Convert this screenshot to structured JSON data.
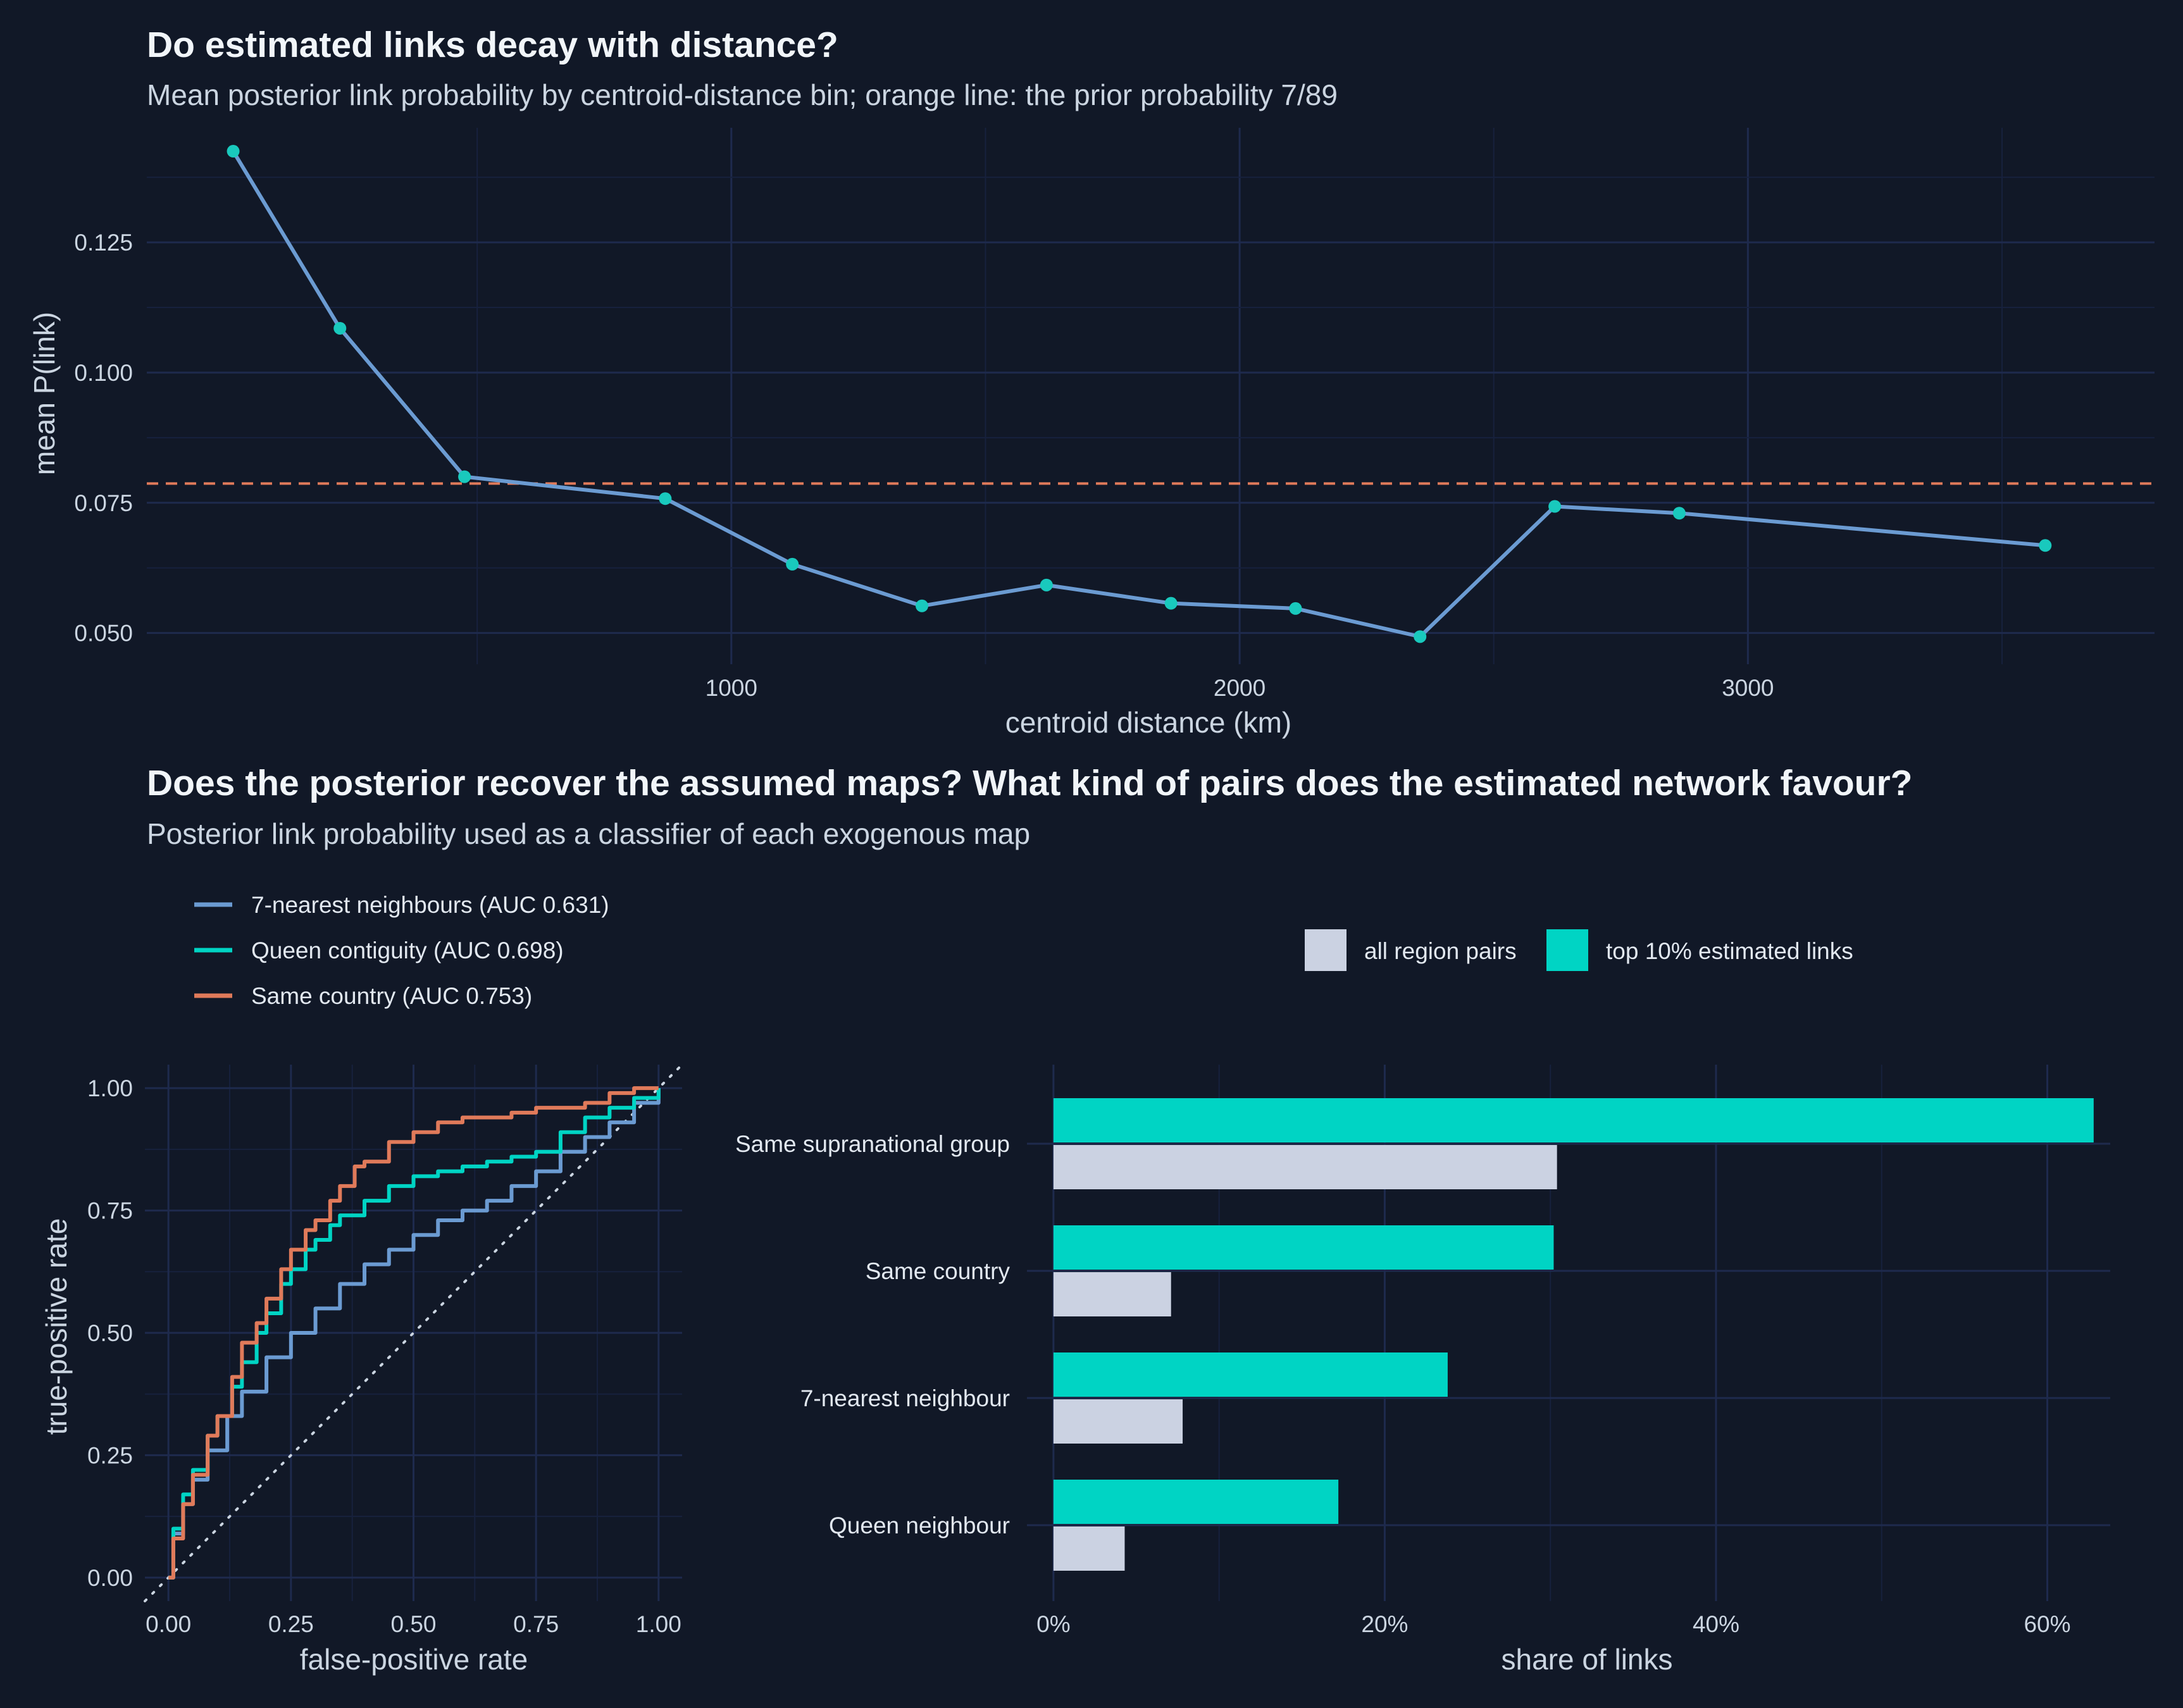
{
  "colors": {
    "background": "#111827",
    "grid_major": "#1e2a4d",
    "grid_minor": "#17213d",
    "line_blue": "#6b9bd2",
    "point_teal": "#19c9bd",
    "teal": "#00d4c4",
    "orange": "#e07a5a",
    "light_bar": "#cbd2e2",
    "diagonal": "#cbd5e1"
  },
  "top": {
    "title": "Do estimated links decay with distance?",
    "subtitle": "Mean posterior link probability by centroid-distance bin; orange line: the prior probability 7/89"
  },
  "bottom": {
    "title": "Does the posterior recover the assumed maps?  What kind of pairs does the estimated network favour?",
    "subtitle": "Posterior link probability used as a classifier of each exogenous map"
  },
  "chart_data": [
    {
      "type": "line",
      "xlabel": "centroid distance (km)",
      "ylabel": "mean P(link)",
      "xlim": [
        -150,
        3800
      ],
      "ylim": [
        0.044,
        0.147
      ],
      "x_ticks": [
        1000,
        2000,
        3000
      ],
      "y_ticks": [
        0.05,
        0.075,
        0.1,
        0.125
      ],
      "y_tick_labels": [
        "0.050",
        "0.075",
        "0.100",
        "0.125"
      ],
      "x_tick_labels": [
        "1000",
        "2000",
        "3000"
      ],
      "x": [
        20,
        230,
        475,
        870,
        1120,
        1375,
        1620,
        1865,
        2110,
        2355,
        2620,
        2865,
        3585
      ],
      "y": [
        0.1425,
        0.1085,
        0.08,
        0.0758,
        0.0632,
        0.0552,
        0.0592,
        0.0557,
        0.0547,
        0.0493,
        0.0743,
        0.073,
        0.0668
      ],
      "reference_line": {
        "y": 0.0787,
        "label": "7/89",
        "style": "dashed"
      },
      "grid": true
    },
    {
      "type": "line",
      "xlabel": "false-positive rate",
      "ylabel": "true-positive rate",
      "xlim": [
        -0.048,
        1.048
      ],
      "ylim": [
        -0.048,
        1.048
      ],
      "ticks": [
        0,
        0.25,
        0.5,
        0.75,
        1.0
      ],
      "tick_labels": [
        "0.00",
        "0.25",
        "0.50",
        "0.75",
        "1.00"
      ],
      "diagonal": true,
      "legend_position": "top-left",
      "series": [
        {
          "name": "7-nearest neighbours (AUC 0.631)",
          "color_key": "line_blue",
          "x": [
            0,
            0.01,
            0.03,
            0.05,
            0.08,
            0.12,
            0.15,
            0.2,
            0.25,
            0.3,
            0.35,
            0.4,
            0.45,
            0.5,
            0.55,
            0.6,
            0.65,
            0.7,
            0.75,
            0.8,
            0.85,
            0.9,
            0.95,
            1.0
          ],
          "y": [
            0,
            0.09,
            0.15,
            0.2,
            0.26,
            0.33,
            0.38,
            0.45,
            0.5,
            0.55,
            0.6,
            0.64,
            0.67,
            0.7,
            0.73,
            0.75,
            0.77,
            0.8,
            0.83,
            0.87,
            0.9,
            0.93,
            0.97,
            1.0
          ]
        },
        {
          "name": "Queen contiguity (AUC 0.698)",
          "color_key": "teal",
          "x": [
            0,
            0.01,
            0.03,
            0.05,
            0.08,
            0.1,
            0.13,
            0.15,
            0.18,
            0.2,
            0.23,
            0.25,
            0.28,
            0.3,
            0.33,
            0.35,
            0.4,
            0.45,
            0.5,
            0.55,
            0.6,
            0.65,
            0.7,
            0.75,
            0.8,
            0.85,
            0.9,
            0.95,
            1.0
          ],
          "y": [
            0,
            0.1,
            0.17,
            0.22,
            0.29,
            0.33,
            0.39,
            0.44,
            0.5,
            0.54,
            0.6,
            0.63,
            0.67,
            0.69,
            0.72,
            0.74,
            0.77,
            0.8,
            0.82,
            0.83,
            0.84,
            0.85,
            0.86,
            0.87,
            0.91,
            0.94,
            0.96,
            0.98,
            1.0
          ]
        },
        {
          "name": "Same country (AUC 0.753)",
          "color_key": "orange",
          "x": [
            0,
            0.01,
            0.03,
            0.05,
            0.08,
            0.1,
            0.13,
            0.15,
            0.18,
            0.2,
            0.23,
            0.25,
            0.28,
            0.3,
            0.33,
            0.35,
            0.38,
            0.4,
            0.45,
            0.5,
            0.55,
            0.6,
            0.65,
            0.7,
            0.75,
            0.8,
            0.85,
            0.9,
            0.95,
            1.0
          ],
          "y": [
            0,
            0.08,
            0.15,
            0.21,
            0.29,
            0.33,
            0.41,
            0.48,
            0.52,
            0.57,
            0.63,
            0.67,
            0.71,
            0.73,
            0.77,
            0.8,
            0.84,
            0.85,
            0.89,
            0.91,
            0.93,
            0.94,
            0.94,
            0.95,
            0.96,
            0.96,
            0.97,
            0.99,
            1.0,
            1.0
          ]
        }
      ]
    },
    {
      "type": "bar",
      "orientation": "horizontal",
      "xlabel": "share of links",
      "xlim": [
        -0.016,
        0.638
      ],
      "x_ticks": [
        0,
        0.2,
        0.4,
        0.6
      ],
      "x_tick_labels": [
        "0%",
        "20%",
        "40%",
        "60%"
      ],
      "categories": [
        "Same supranational group",
        "Same country",
        "7-nearest neighbour",
        "Queen neighbour"
      ],
      "legend_position": "top-right",
      "series": [
        {
          "name": "all region pairs",
          "color_key": "light_bar",
          "values": [
            0.304,
            0.071,
            0.078,
            0.043
          ]
        },
        {
          "name": "top 10% estimated links",
          "color_key": "teal",
          "values": [
            0.628,
            0.302,
            0.238,
            0.172
          ]
        }
      ]
    }
  ]
}
